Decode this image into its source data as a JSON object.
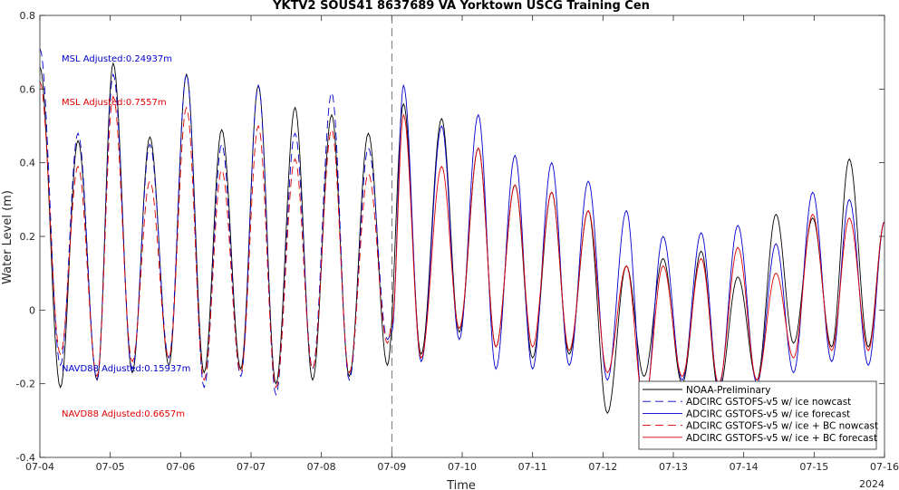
{
  "chart_data": {
    "type": "line",
    "title": "YKTV2 SOUS41 8637689 VA Yorktown USCG Training Cen",
    "xlabel": "Time",
    "ylabel": "Water Level (m)",
    "year_label": "2024",
    "ylim": [
      -0.4,
      0.8
    ],
    "yticks": [
      -0.4,
      -0.2,
      0,
      0.2,
      0.4,
      0.6,
      0.8
    ],
    "ytick_labels": [
      "-0.4",
      "-0.2",
      "0",
      "0.2",
      "0.4",
      "0.6",
      "0.8"
    ],
    "xlim": [
      "07-04",
      "07-16"
    ],
    "xtick_labels": [
      "07-04",
      "07-05",
      "07-06",
      "07-07",
      "07-08",
      "07-09",
      "07-10",
      "07-11",
      "07-12",
      "07-13",
      "07-14",
      "07-15",
      "07-16"
    ],
    "nowcast_forecast_boundary": "07-09",
    "grid": false,
    "legend_position": "bottom-right",
    "annotations": [
      {
        "text": "MSL Adjusted:0.24937m",
        "color": "#0000cc"
      },
      {
        "text": "MSL Adjusted:0.7557m",
        "color": "#e00000"
      },
      {
        "text": "NAVD88 Adjusted:0.15937m",
        "color": "#0000cc"
      },
      {
        "text": "NAVD88 Adjusted:0.6657m",
        "color": "#e00000"
      }
    ],
    "series": [
      {
        "name": "NOAA-Preliminary",
        "color": "#000000",
        "dash": "solid",
        "x": [
          "07-04",
          "07-04 07:00",
          "07-04 13:00",
          "07-04 19:30",
          "07-05 01:00",
          "07-05 07:30",
          "07-05 13:30",
          "07-05 20:00",
          "07-06 02:00",
          "07-06 08:00",
          "07-06 14:00",
          "07-06 20:30",
          "07-07 02:30",
          "07-07 08:30",
          "07-07 15:00",
          "07-07 21:00",
          "07-08 03:30",
          "07-08 09:30",
          "07-08 16:00",
          "07-08 22:30",
          "07-09 04:00",
          "07-09 10:00",
          "07-09 17:00",
          "07-09 23:00",
          "07-10 05:30",
          "07-10 11:30",
          "07-10 18:00",
          "07-11 00:00",
          "07-11 06:30",
          "07-11 12:30",
          "07-11 19:00",
          "07-12 01:30",
          "07-12 08:00",
          "07-12 14:00",
          "07-12 20:30",
          "07-13 03:00",
          "07-13 09:30",
          "07-13 15:30",
          "07-13 22:00",
          "07-14 04:30",
          "07-14 11:00",
          "07-14 17:00",
          "07-14 23:30",
          "07-15 06:00",
          "07-15 12:00",
          "07-15 18:30",
          "07-16"
        ],
        "y": [
          0.66,
          -0.21,
          0.46,
          -0.19,
          0.67,
          -0.17,
          0.47,
          -0.15,
          0.64,
          -0.17,
          0.49,
          -0.16,
          0.61,
          -0.2,
          0.55,
          -0.19,
          0.53,
          -0.18,
          0.48,
          -0.15,
          0.56,
          -0.12,
          0.52,
          -0.06,
          0.44,
          -0.1,
          0.34,
          -0.13,
          0.32,
          -0.12,
          0.27,
          -0.28,
          0.12,
          -0.18,
          0.14,
          -0.2,
          0.16,
          -0.22,
          0.09,
          -0.19,
          0.26,
          -0.09,
          0.25,
          -0.1,
          0.41,
          -0.1,
          0.24
        ]
      },
      {
        "name": "ADCIRC GSTOFS-v5 w/ ice nowcast",
        "color": "#0000cc",
        "dash": "long",
        "x": [
          "07-04",
          "07-04 07:00",
          "07-04 13:00",
          "07-04 19:30",
          "07-05 01:00",
          "07-05 07:30",
          "07-05 13:30",
          "07-05 20:00",
          "07-06 02:00",
          "07-06 08:00",
          "07-06 14:00",
          "07-06 20:30",
          "07-07 02:30",
          "07-07 08:30",
          "07-07 15:00",
          "07-07 21:00",
          "07-08 03:30",
          "07-08 09:30",
          "07-08 16:00",
          "07-08 22:30",
          "07-09"
        ],
        "y": [
          0.71,
          -0.15,
          0.48,
          -0.19,
          0.64,
          -0.16,
          0.45,
          -0.13,
          0.64,
          -0.21,
          0.45,
          -0.18,
          0.61,
          -0.23,
          0.48,
          -0.16,
          0.59,
          -0.19,
          0.44,
          -0.08,
          -0.06
        ]
      },
      {
        "name": "ADCIRC GSTOFS-v5 w/ ice forecast",
        "color": "#0000cc",
        "dash": "solid",
        "x": [
          "07-09",
          "07-09 04:00",
          "07-09 10:00",
          "07-09 17:00",
          "07-09 23:00",
          "07-10 05:30",
          "07-10 11:30",
          "07-10 18:00",
          "07-11 00:00",
          "07-11 06:30",
          "07-11 12:30",
          "07-11 19:00",
          "07-12 01:30",
          "07-12 08:00",
          "07-12 14:00",
          "07-12 20:30",
          "07-13 03:00",
          "07-13 09:30",
          "07-13 15:30",
          "07-13 22:00",
          "07-14 04:30",
          "07-14 11:00",
          "07-14 17:00",
          "07-14 23:30",
          "07-15 06:00",
          "07-15 12:00",
          "07-15 18:30",
          "07-16"
        ],
        "y": [
          -0.06,
          0.61,
          -0.14,
          0.5,
          -0.08,
          0.53,
          -0.16,
          0.42,
          -0.16,
          0.4,
          -0.15,
          0.35,
          -0.19,
          0.27,
          -0.28,
          0.2,
          -0.19,
          0.21,
          -0.21,
          0.23,
          -0.2,
          0.18,
          -0.17,
          0.32,
          -0.14,
          0.3,
          -0.15,
          0.24
        ]
      },
      {
        "name": "ADCIRC GSTOFS-v5 w/ ice + BC nowcast",
        "color": "#e00000",
        "dash": "long",
        "x": [
          "07-04",
          "07-04 07:00",
          "07-04 13:00",
          "07-04 19:30",
          "07-05 01:00",
          "07-05 07:30",
          "07-05 13:30",
          "07-05 20:00",
          "07-06 02:00",
          "07-06 08:00",
          "07-06 14:00",
          "07-06 20:30",
          "07-07 02:30",
          "07-07 08:30",
          "07-07 15:00",
          "07-07 21:00",
          "07-08 03:30",
          "07-08 09:30",
          "07-08 16:00",
          "07-08 22:30",
          "07-09"
        ],
        "y": [
          0.62,
          -0.12,
          0.39,
          -0.18,
          0.58,
          -0.14,
          0.35,
          -0.13,
          0.55,
          -0.19,
          0.38,
          -0.17,
          0.5,
          -0.21,
          0.41,
          -0.16,
          0.49,
          -0.17,
          0.37,
          -0.09,
          -0.04
        ]
      },
      {
        "name": "ADCIRC GSTOFS-v5 w/ ice + BC forecast",
        "color": "#e00000",
        "dash": "solid",
        "x": [
          "07-09",
          "07-09 04:00",
          "07-09 10:00",
          "07-09 17:00",
          "07-09 23:00",
          "07-10 05:30",
          "07-10 11:30",
          "07-10 18:00",
          "07-11 00:00",
          "07-11 06:30",
          "07-11 12:30",
          "07-11 19:00",
          "07-12 01:30",
          "07-12 08:00",
          "07-12 14:00",
          "07-12 20:30",
          "07-13 03:00",
          "07-13 09:30",
          "07-13 15:30",
          "07-13 22:00",
          "07-14 04:30",
          "07-14 11:00",
          "07-14 17:00",
          "07-14 23:30",
          "07-15 06:00",
          "07-15 12:00",
          "07-15 18:30",
          "07-16"
        ],
        "y": [
          -0.04,
          0.53,
          -0.13,
          0.39,
          -0.05,
          0.44,
          -0.1,
          0.34,
          -0.1,
          0.32,
          -0.11,
          0.27,
          -0.17,
          0.12,
          -0.26,
          0.12,
          -0.18,
          0.14,
          -0.2,
          0.17,
          -0.19,
          0.1,
          -0.13,
          0.26,
          -0.11,
          0.25,
          -0.11,
          0.24
        ]
      }
    ]
  }
}
